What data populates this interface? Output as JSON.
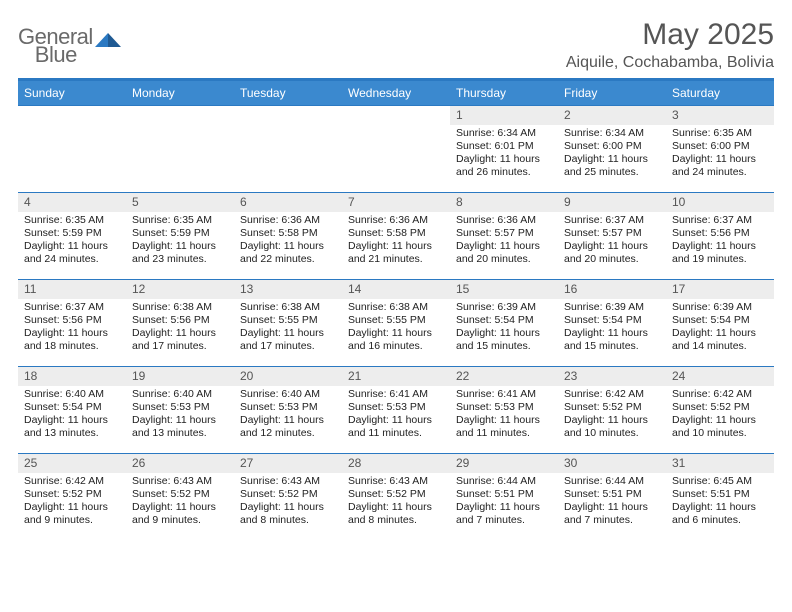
{
  "logo": {
    "text_gray": "General",
    "text_blue": "Blue"
  },
  "header": {
    "month_title": "May 2025",
    "location": "Aiquile, Cochabamba, Bolivia"
  },
  "colors": {
    "header_bar": "#3b89cf",
    "accent_line": "#2b79c2",
    "daynum_bg": "#ededed",
    "text_muted": "#555555",
    "background": "#ffffff"
  },
  "weekdays": [
    "Sunday",
    "Monday",
    "Tuesday",
    "Wednesday",
    "Thursday",
    "Friday",
    "Saturday"
  ],
  "weeks": [
    [
      {
        "empty": true
      },
      {
        "empty": true
      },
      {
        "empty": true
      },
      {
        "empty": true
      },
      {
        "num": "1",
        "sunrise": "Sunrise: 6:34 AM",
        "sunset": "Sunset: 6:01 PM",
        "d1": "Daylight: 11 hours",
        "d2": "and 26 minutes."
      },
      {
        "num": "2",
        "sunrise": "Sunrise: 6:34 AM",
        "sunset": "Sunset: 6:00 PM",
        "d1": "Daylight: 11 hours",
        "d2": "and 25 minutes."
      },
      {
        "num": "3",
        "sunrise": "Sunrise: 6:35 AM",
        "sunset": "Sunset: 6:00 PM",
        "d1": "Daylight: 11 hours",
        "d2": "and 24 minutes."
      }
    ],
    [
      {
        "num": "4",
        "sunrise": "Sunrise: 6:35 AM",
        "sunset": "Sunset: 5:59 PM",
        "d1": "Daylight: 11 hours",
        "d2": "and 24 minutes."
      },
      {
        "num": "5",
        "sunrise": "Sunrise: 6:35 AM",
        "sunset": "Sunset: 5:59 PM",
        "d1": "Daylight: 11 hours",
        "d2": "and 23 minutes."
      },
      {
        "num": "6",
        "sunrise": "Sunrise: 6:36 AM",
        "sunset": "Sunset: 5:58 PM",
        "d1": "Daylight: 11 hours",
        "d2": "and 22 minutes."
      },
      {
        "num": "7",
        "sunrise": "Sunrise: 6:36 AM",
        "sunset": "Sunset: 5:58 PM",
        "d1": "Daylight: 11 hours",
        "d2": "and 21 minutes."
      },
      {
        "num": "8",
        "sunrise": "Sunrise: 6:36 AM",
        "sunset": "Sunset: 5:57 PM",
        "d1": "Daylight: 11 hours",
        "d2": "and 20 minutes."
      },
      {
        "num": "9",
        "sunrise": "Sunrise: 6:37 AM",
        "sunset": "Sunset: 5:57 PM",
        "d1": "Daylight: 11 hours",
        "d2": "and 20 minutes."
      },
      {
        "num": "10",
        "sunrise": "Sunrise: 6:37 AM",
        "sunset": "Sunset: 5:56 PM",
        "d1": "Daylight: 11 hours",
        "d2": "and 19 minutes."
      }
    ],
    [
      {
        "num": "11",
        "sunrise": "Sunrise: 6:37 AM",
        "sunset": "Sunset: 5:56 PM",
        "d1": "Daylight: 11 hours",
        "d2": "and 18 minutes."
      },
      {
        "num": "12",
        "sunrise": "Sunrise: 6:38 AM",
        "sunset": "Sunset: 5:56 PM",
        "d1": "Daylight: 11 hours",
        "d2": "and 17 minutes."
      },
      {
        "num": "13",
        "sunrise": "Sunrise: 6:38 AM",
        "sunset": "Sunset: 5:55 PM",
        "d1": "Daylight: 11 hours",
        "d2": "and 17 minutes."
      },
      {
        "num": "14",
        "sunrise": "Sunrise: 6:38 AM",
        "sunset": "Sunset: 5:55 PM",
        "d1": "Daylight: 11 hours",
        "d2": "and 16 minutes."
      },
      {
        "num": "15",
        "sunrise": "Sunrise: 6:39 AM",
        "sunset": "Sunset: 5:54 PM",
        "d1": "Daylight: 11 hours",
        "d2": "and 15 minutes."
      },
      {
        "num": "16",
        "sunrise": "Sunrise: 6:39 AM",
        "sunset": "Sunset: 5:54 PM",
        "d1": "Daylight: 11 hours",
        "d2": "and 15 minutes."
      },
      {
        "num": "17",
        "sunrise": "Sunrise: 6:39 AM",
        "sunset": "Sunset: 5:54 PM",
        "d1": "Daylight: 11 hours",
        "d2": "and 14 minutes."
      }
    ],
    [
      {
        "num": "18",
        "sunrise": "Sunrise: 6:40 AM",
        "sunset": "Sunset: 5:54 PM",
        "d1": "Daylight: 11 hours",
        "d2": "and 13 minutes."
      },
      {
        "num": "19",
        "sunrise": "Sunrise: 6:40 AM",
        "sunset": "Sunset: 5:53 PM",
        "d1": "Daylight: 11 hours",
        "d2": "and 13 minutes."
      },
      {
        "num": "20",
        "sunrise": "Sunrise: 6:40 AM",
        "sunset": "Sunset: 5:53 PM",
        "d1": "Daylight: 11 hours",
        "d2": "and 12 minutes."
      },
      {
        "num": "21",
        "sunrise": "Sunrise: 6:41 AM",
        "sunset": "Sunset: 5:53 PM",
        "d1": "Daylight: 11 hours",
        "d2": "and 11 minutes."
      },
      {
        "num": "22",
        "sunrise": "Sunrise: 6:41 AM",
        "sunset": "Sunset: 5:53 PM",
        "d1": "Daylight: 11 hours",
        "d2": "and 11 minutes."
      },
      {
        "num": "23",
        "sunrise": "Sunrise: 6:42 AM",
        "sunset": "Sunset: 5:52 PM",
        "d1": "Daylight: 11 hours",
        "d2": "and 10 minutes."
      },
      {
        "num": "24",
        "sunrise": "Sunrise: 6:42 AM",
        "sunset": "Sunset: 5:52 PM",
        "d1": "Daylight: 11 hours",
        "d2": "and 10 minutes."
      }
    ],
    [
      {
        "num": "25",
        "sunrise": "Sunrise: 6:42 AM",
        "sunset": "Sunset: 5:52 PM",
        "d1": "Daylight: 11 hours",
        "d2": "and 9 minutes."
      },
      {
        "num": "26",
        "sunrise": "Sunrise: 6:43 AM",
        "sunset": "Sunset: 5:52 PM",
        "d1": "Daylight: 11 hours",
        "d2": "and 9 minutes."
      },
      {
        "num": "27",
        "sunrise": "Sunrise: 6:43 AM",
        "sunset": "Sunset: 5:52 PM",
        "d1": "Daylight: 11 hours",
        "d2": "and 8 minutes."
      },
      {
        "num": "28",
        "sunrise": "Sunrise: 6:43 AM",
        "sunset": "Sunset: 5:52 PM",
        "d1": "Daylight: 11 hours",
        "d2": "and 8 minutes."
      },
      {
        "num": "29",
        "sunrise": "Sunrise: 6:44 AM",
        "sunset": "Sunset: 5:51 PM",
        "d1": "Daylight: 11 hours",
        "d2": "and 7 minutes."
      },
      {
        "num": "30",
        "sunrise": "Sunrise: 6:44 AM",
        "sunset": "Sunset: 5:51 PM",
        "d1": "Daylight: 11 hours",
        "d2": "and 7 minutes."
      },
      {
        "num": "31",
        "sunrise": "Sunrise: 6:45 AM",
        "sunset": "Sunset: 5:51 PM",
        "d1": "Daylight: 11 hours",
        "d2": "and 6 minutes."
      }
    ]
  ]
}
